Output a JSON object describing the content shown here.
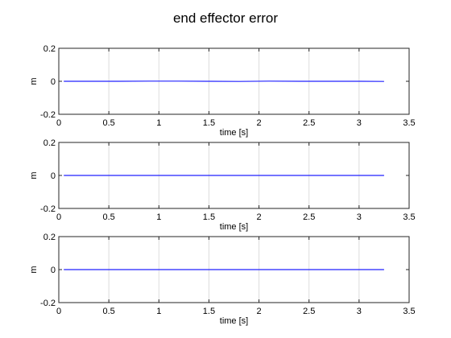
{
  "figure": {
    "title": "end effector error"
  },
  "chart_data": [
    {
      "type": "line",
      "xlabel": "time [s]",
      "ylabel": "m",
      "xlim": [
        0,
        3.5
      ],
      "ylim": [
        -0.2,
        0.2
      ],
      "xticks": [
        "0",
        "0.5",
        "1",
        "1.5",
        "2",
        "2.5",
        "3",
        "3.5"
      ],
      "yticks": [
        "-0.2",
        "0",
        "0.2"
      ],
      "grid": "x",
      "series": [
        {
          "color": "#2222ff",
          "x": [
            0.05,
            0.3,
            0.6,
            0.9,
            1.2,
            1.5,
            1.8,
            2.1,
            2.4,
            2.7,
            3.0,
            3.25
          ],
          "y": [
            0,
            0,
            0,
            0.001,
            0.001,
            0,
            -0.001,
            0.001,
            0,
            0,
            0,
            -0.001
          ]
        }
      ]
    },
    {
      "type": "line",
      "xlabel": "time [s]",
      "ylabel": "m",
      "xlim": [
        0,
        3.5
      ],
      "ylim": [
        -0.2,
        0.2
      ],
      "xticks": [
        "0",
        "0.5",
        "1",
        "1.5",
        "2",
        "2.5",
        "3",
        "3.5"
      ],
      "yticks": [
        "-0.2",
        "0",
        "0.2"
      ],
      "grid": "x",
      "series": [
        {
          "color": "#2222ff",
          "x": [
            0.05,
            0.5,
            1.0,
            1.5,
            2.0,
            2.5,
            3.0,
            3.25
          ],
          "y": [
            0,
            0,
            0,
            0,
            0,
            0,
            0,
            0
          ]
        }
      ]
    },
    {
      "type": "line",
      "xlabel": "time [s]",
      "ylabel": "m",
      "xlim": [
        0,
        3.5
      ],
      "ylim": [
        -0.2,
        0.2
      ],
      "xticks": [
        "0",
        "0.5",
        "1",
        "1.5",
        "2",
        "2.5",
        "3",
        "3.5"
      ],
      "yticks": [
        "-0.2",
        "0",
        "0.2"
      ],
      "grid": "x",
      "series": [
        {
          "color": "#2222ff",
          "x": [
            0.05,
            0.5,
            1.0,
            1.5,
            2.0,
            2.5,
            3.0,
            3.25
          ],
          "y": [
            0,
            0,
            0,
            0,
            0,
            0,
            0,
            0
          ]
        }
      ]
    }
  ]
}
